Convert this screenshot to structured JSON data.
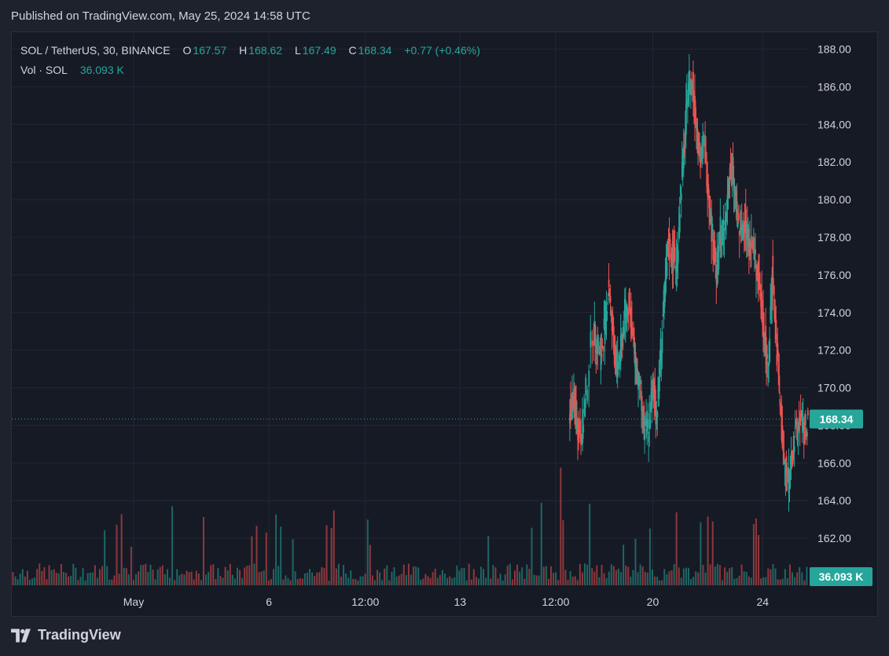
{
  "header": {
    "published": "Published on TradingView.com, May 25, 2024 14:58 UTC"
  },
  "legend": {
    "symbol": "SOL / TetherUS, 30, BINANCE",
    "o_label": "O",
    "o": "167.57",
    "h_label": "H",
    "h": "168.62",
    "l_label": "L",
    "l": "167.49",
    "c_label": "C",
    "c": "168.34",
    "change": "+0.77 (+0.46%)",
    "vol_label": "Vol · SOL",
    "vol": "36.093 K"
  },
  "badges": {
    "price": "168.34",
    "volume": "36.093 K"
  },
  "brand": {
    "name": "TradingView"
  },
  "colors": {
    "background": "#161a25",
    "up": "#26a69a",
    "down": "#ef5350",
    "grid": "#232734",
    "text": "#d1d4dc",
    "price_line": "#26a69a"
  },
  "chart_data": {
    "type": "candlestick",
    "symbol": "SOL / TetherUS",
    "interval": "30",
    "exchange": "BINANCE",
    "ylim": [
      159.5,
      188.9
    ],
    "y_ticks": [
      162,
      164,
      166,
      168,
      170,
      172,
      174,
      176,
      178,
      180,
      182,
      184,
      186,
      188
    ],
    "y_tick_labels": [
      "162.00",
      "164.00",
      "166.00",
      "168.00",
      "170.00",
      "172.00",
      "174.00",
      "176.00",
      "178.00",
      "180.00",
      "182.00",
      "184.00",
      "186.00",
      "188.00"
    ],
    "x_tick_labels": [
      "May",
      "6",
      "12:00",
      "13",
      "12:00",
      "20",
      "24"
    ],
    "last_price": 168.34,
    "last_volume_k": 36.093,
    "price_series": [
      {
        "t": 0.7,
        "p": 168.5
      },
      {
        "t": 0.705,
        "p": 169.5
      },
      {
        "t": 0.71,
        "p": 168.0
      },
      {
        "t": 0.715,
        "p": 167.5
      },
      {
        "t": 0.72,
        "p": 169.0
      },
      {
        "t": 0.73,
        "p": 173.0
      },
      {
        "t": 0.735,
        "p": 172.5
      },
      {
        "t": 0.74,
        "p": 171.5
      },
      {
        "t": 0.745,
        "p": 173.5
      },
      {
        "t": 0.75,
        "p": 175.5
      },
      {
        "t": 0.755,
        "p": 172.5
      },
      {
        "t": 0.76,
        "p": 171.0
      },
      {
        "t": 0.765,
        "p": 172.0
      },
      {
        "t": 0.77,
        "p": 174.0
      },
      {
        "t": 0.775,
        "p": 174.5
      },
      {
        "t": 0.78,
        "p": 172.5
      },
      {
        "t": 0.785,
        "p": 171.0
      },
      {
        "t": 0.79,
        "p": 169.5
      },
      {
        "t": 0.795,
        "p": 167.5
      },
      {
        "t": 0.8,
        "p": 168.0
      },
      {
        "t": 0.805,
        "p": 170.0
      },
      {
        "t": 0.81,
        "p": 168.5
      },
      {
        "t": 0.815,
        "p": 172.0
      },
      {
        "t": 0.82,
        "p": 175.0
      },
      {
        "t": 0.825,
        "p": 177.5
      },
      {
        "t": 0.83,
        "p": 177.0
      },
      {
        "t": 0.835,
        "p": 176.5
      },
      {
        "t": 0.84,
        "p": 180.5
      },
      {
        "t": 0.845,
        "p": 183.0
      },
      {
        "t": 0.85,
        "p": 186.5
      },
      {
        "t": 0.855,
        "p": 186.0
      },
      {
        "t": 0.86,
        "p": 184.0
      },
      {
        "t": 0.865,
        "p": 182.0
      },
      {
        "t": 0.87,
        "p": 183.0
      },
      {
        "t": 0.875,
        "p": 180.5
      },
      {
        "t": 0.88,
        "p": 178.0
      },
      {
        "t": 0.885,
        "p": 176.0
      },
      {
        "t": 0.89,
        "p": 178.5
      },
      {
        "t": 0.895,
        "p": 178.0
      },
      {
        "t": 0.9,
        "p": 181.0
      },
      {
        "t": 0.905,
        "p": 181.5
      },
      {
        "t": 0.91,
        "p": 179.5
      },
      {
        "t": 0.915,
        "p": 178.0
      },
      {
        "t": 0.92,
        "p": 179.0
      },
      {
        "t": 0.925,
        "p": 178.0
      },
      {
        "t": 0.93,
        "p": 177.5
      },
      {
        "t": 0.935,
        "p": 176.5
      },
      {
        "t": 0.94,
        "p": 175.0
      },
      {
        "t": 0.945,
        "p": 173.0
      },
      {
        "t": 0.95,
        "p": 170.5
      },
      {
        "t": 0.955,
        "p": 176.5
      },
      {
        "t": 0.96,
        "p": 172.5
      },
      {
        "t": 0.965,
        "p": 169.0
      },
      {
        "t": 0.97,
        "p": 166.0
      },
      {
        "t": 0.975,
        "p": 165.0
      },
      {
        "t": 0.98,
        "p": 166.5
      },
      {
        "t": 0.985,
        "p": 167.5
      },
      {
        "t": 0.99,
        "p": 168.5
      },
      {
        "t": 0.995,
        "p": 167.5
      },
      {
        "t": 1.0,
        "p": 168.34
      }
    ]
  }
}
